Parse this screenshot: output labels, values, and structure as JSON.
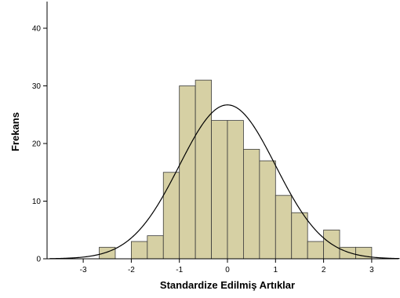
{
  "chart_data": {
    "type": "bar",
    "subtype": "histogram",
    "title": "",
    "xlabel": "Standardize Edilmiş Artıklar",
    "ylabel": "Frekans",
    "xlim": [
      -3.6,
      3.6
    ],
    "ylim": [
      0,
      45
    ],
    "bin_width": 0.333,
    "bins": [
      {
        "start": -2.667,
        "count": 2
      },
      {
        "start": -2.333,
        "count": 0
      },
      {
        "start": -2.0,
        "count": 0
      },
      {
        "start": -2.0,
        "count": 0
      },
      {
        "start": -1.833,
        "count": 3
      },
      {
        "start": -1.5,
        "count": 4
      },
      {
        "start": -1.167,
        "count": 15
      },
      {
        "start": -1.0,
        "count": 30
      },
      {
        "start": -0.667,
        "count": 31
      },
      {
        "start": -0.333,
        "count": 24
      },
      {
        "start": 0.0,
        "count": 24
      },
      {
        "start": 0.333,
        "count": 19
      },
      {
        "start": 0.667,
        "count": 17
      },
      {
        "start": 1.0,
        "count": 11
      },
      {
        "start": 1.333,
        "count": 8
      },
      {
        "start": 1.667,
        "count": 3
      },
      {
        "start": 2.0,
        "count": 5
      },
      {
        "start": 2.333,
        "count": 2
      },
      {
        "start": 2.667,
        "count": 2
      }
    ],
    "x_ticks": [
      -3,
      -2,
      -1,
      0,
      1,
      2,
      3
    ],
    "y_ticks": [
      0,
      10,
      20,
      30,
      40
    ],
    "normal_curve": {
      "mean": 0.0,
      "sd": 1.0,
      "peak": 26.7
    },
    "colors": {
      "bar_fill": "#d6d0a4",
      "bar_stroke": "#3a3a3a",
      "curve": "#000000",
      "background": "#ffffff"
    },
    "grid": false
  }
}
